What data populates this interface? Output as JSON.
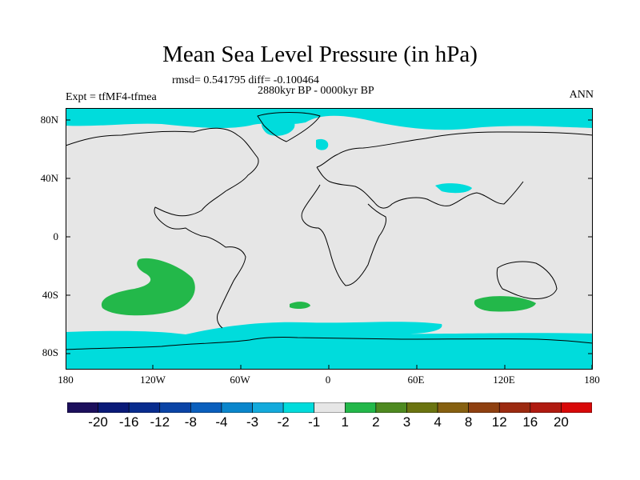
{
  "header": {
    "title": "Mean Sea Level Pressure (in hPa)",
    "stats": "rmsd= 0.541795 diff= -0.100464",
    "period": "2880kyr BP - 0000kyr BP",
    "experiment": "Expt = tfMF4-tfmea",
    "season": "ANN"
  },
  "axes": {
    "lat_labels": [
      "80N",
      "40N",
      "0",
      "40S",
      "80S"
    ],
    "lon_labels": [
      "180",
      "120W",
      "60W",
      "0",
      "60E",
      "120E",
      "180"
    ]
  },
  "colorbar": {
    "colors": [
      "#1c0f5c",
      "#0a1a78",
      "#082c8e",
      "#0a44a6",
      "#0a5fbd",
      "#0a86cc",
      "#13aadc",
      "#00dcdc",
      "#e6e6e6",
      "#23b84a",
      "#4e8a20",
      "#6b7410",
      "#866010",
      "#8f4010",
      "#9c2a10",
      "#b01a10",
      "#d80808"
    ],
    "labels": [
      "-20",
      "-16",
      "-12",
      "-8",
      "-4",
      "-3",
      "-2",
      "-1",
      "1",
      "2",
      "3",
      "4",
      "8",
      "12",
      "16",
      "20"
    ]
  },
  "map_colors": {
    "land_background": "#e6e6e6",
    "negative_anomaly": "#00dcdc",
    "positive_anomaly": "#23b84a"
  }
}
